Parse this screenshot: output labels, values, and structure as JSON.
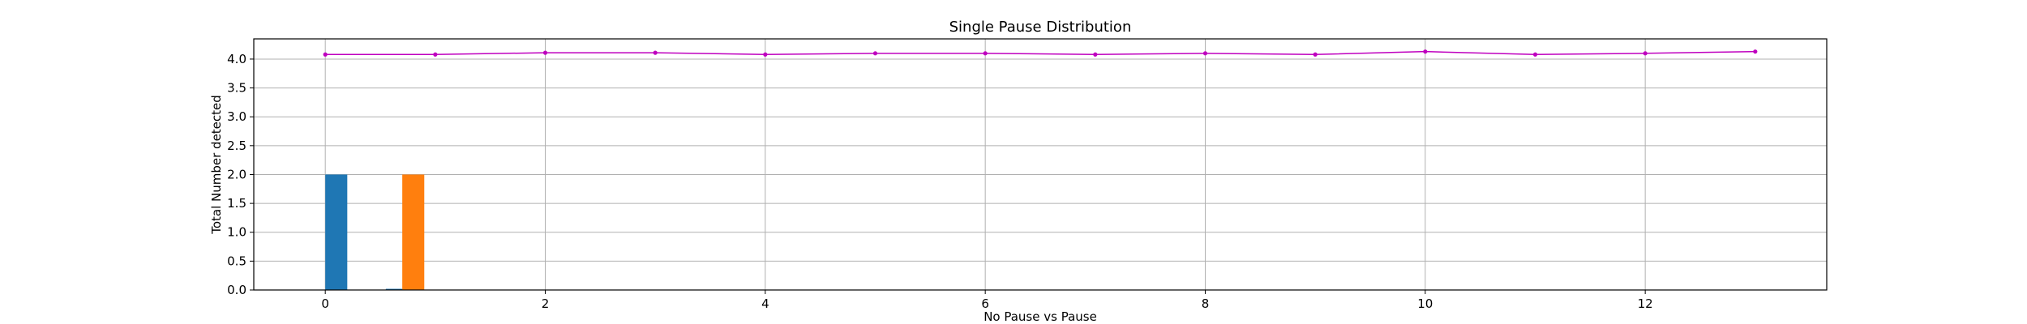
{
  "chart_data": {
    "type": "bar",
    "title": "Single Pause Distribution",
    "xlabel": "No Pause vs Pause",
    "ylabel": "Total Number detected",
    "xlim": [
      -0.65,
      13.65
    ],
    "ylim": [
      0,
      4.35
    ],
    "xticks": [
      0,
      2,
      4,
      6,
      8,
      10,
      12
    ],
    "yticks": [
      0.0,
      0.5,
      1.0,
      1.5,
      2.0,
      2.5,
      3.0,
      3.5,
      4.0
    ],
    "grid": true,
    "bars": [
      {
        "x": 0.0,
        "width": 0.2,
        "value": 2,
        "color": "#1f77b4"
      },
      {
        "x": 0.55,
        "width": 0.2,
        "value": 0.02,
        "color": "#1f77b4"
      },
      {
        "x": 0.7,
        "width": 0.2,
        "value": 2,
        "color": "#ff7f0e"
      }
    ],
    "line_series": {
      "color": "#bf00bf",
      "x": [
        0,
        1,
        2,
        3,
        4,
        5,
        6,
        7,
        8,
        9,
        10,
        11,
        12,
        13
      ],
      "y": [
        4.08,
        4.08,
        4.11,
        4.11,
        4.08,
        4.1,
        4.1,
        4.08,
        4.1,
        4.08,
        4.13,
        4.08,
        4.1,
        4.13
      ]
    }
  }
}
